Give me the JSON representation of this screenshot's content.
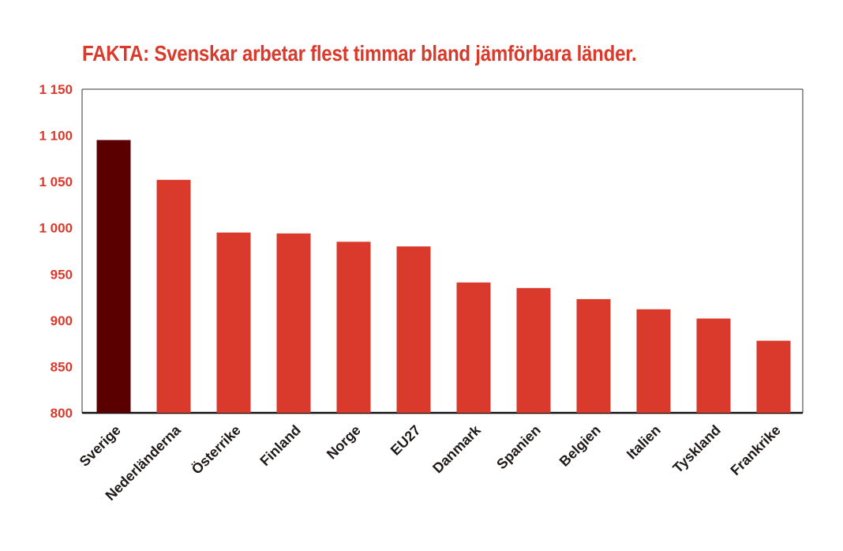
{
  "chart_data": {
    "type": "bar",
    "title": "FAKTA: Svenskar arbetar flest timmar bland jämförbara länder.",
    "categories": [
      "Sverige",
      "Nederländerna",
      "Österrike",
      "Finland",
      "Norge",
      "EU27",
      "Danmark",
      "Spanien",
      "Belgien",
      "Italien",
      "Tyskland",
      "Frankrike"
    ],
    "values": [
      1095,
      1052,
      995,
      994,
      985,
      980,
      941,
      935,
      923,
      912,
      902,
      878
    ],
    "highlight_index": 0,
    "ylim": [
      800,
      1150
    ],
    "yticks": [
      {
        "value": 800,
        "label": "800"
      },
      {
        "value": 850,
        "label": "850"
      },
      {
        "value": 900,
        "label": "900"
      },
      {
        "value": 950,
        "label": "950"
      },
      {
        "value": 1000,
        "label": "1 000"
      },
      {
        "value": 1050,
        "label": "1 050"
      },
      {
        "value": 1100,
        "label": "1 100"
      },
      {
        "value": 1150,
        "label": "1 150"
      }
    ],
    "grid": false,
    "xlabel": "",
    "ylabel": "",
    "colors": {
      "bar": "#d93a2b",
      "highlight": "#5b0000",
      "tick_label": "#d93a2b",
      "category_label": "#1f1a17",
      "axis": "#111111"
    }
  }
}
